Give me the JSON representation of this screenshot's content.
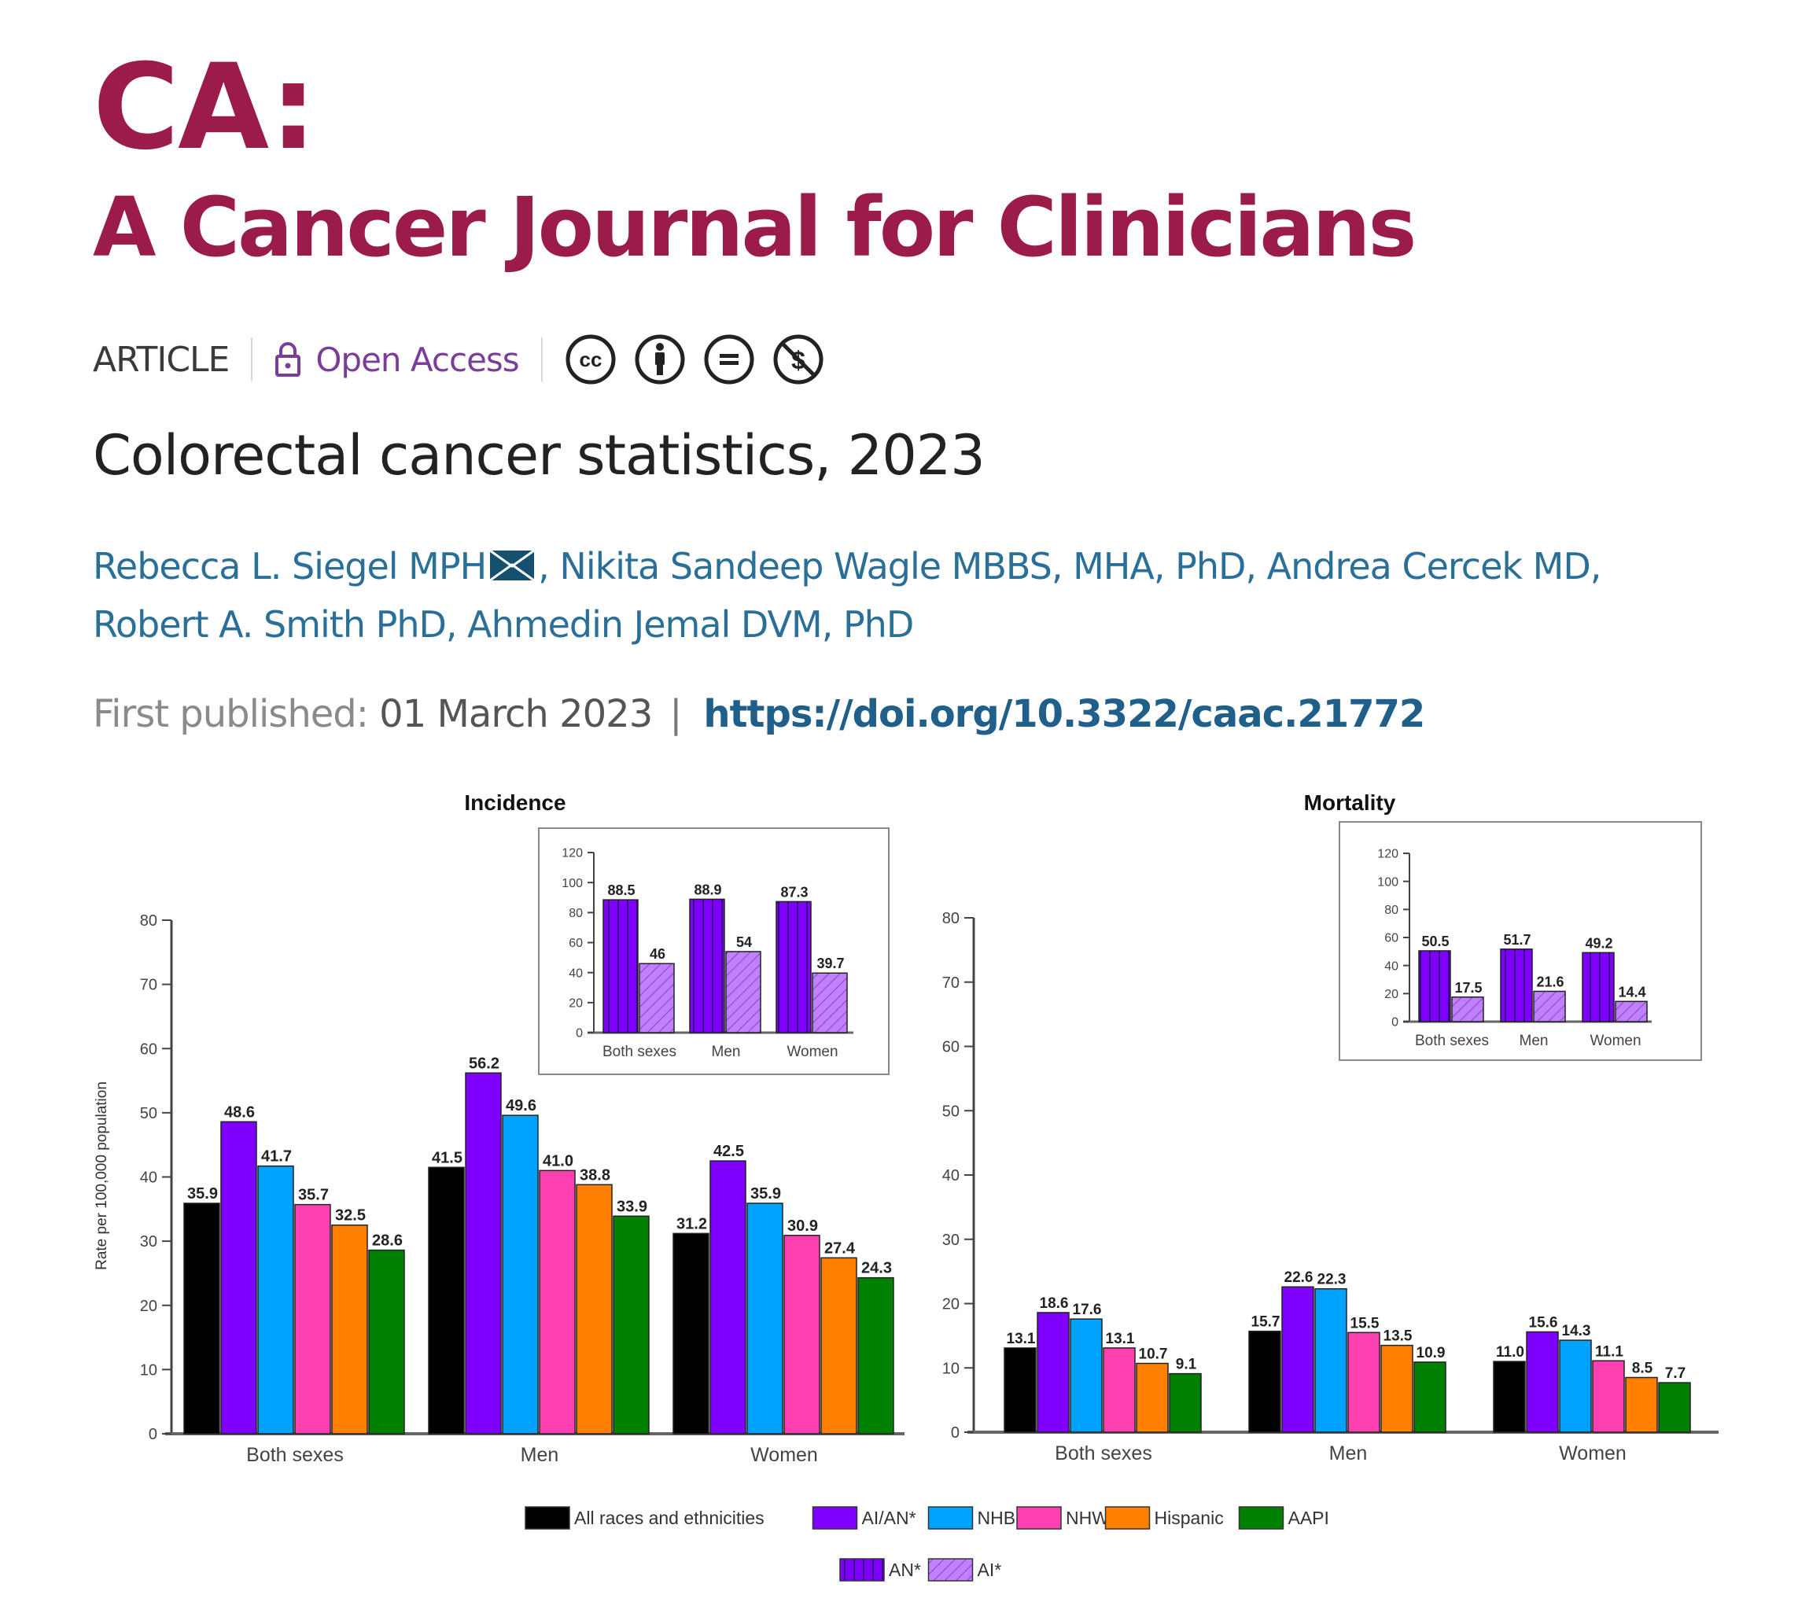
{
  "journal": {
    "name_short": "CA:",
    "name_full": "A Cancer Journal for Clinicians",
    "brand_color": "#9b1b4a"
  },
  "meta": {
    "article_type": "ARTICLE",
    "access_label": "Open Access",
    "access_icon": "lock-icon",
    "license_icons": [
      "cc-icon",
      "attribution-icon",
      "no-derivatives-icon",
      "non-commercial-icon"
    ]
  },
  "article": {
    "title": "Colorectal cancer statistics, 2023",
    "authors_line1_a": "Rebecca L. Siegel MPH",
    "authors_line1_b": ", Nikita Sandeep Wagle MBBS, MHA, PhD, Andrea Cercek MD,",
    "authors_line2": "Robert A. Smith PhD, Ahmedin Jemal DVM, PhD",
    "published_label": "First published:",
    "published_date": "01 March 2023",
    "doi": "https://doi.org/10.3322/caac.21772"
  },
  "chart_data": [
    {
      "type": "bar",
      "title": "Incidence",
      "ylabel": "Rate per 100,000 population",
      "xlabel": "",
      "ylim": [
        0,
        80
      ],
      "yticks": [
        0,
        10,
        20,
        30,
        40,
        50,
        60,
        70,
        80
      ],
      "categories": [
        "Both sexes",
        "Men",
        "Women"
      ],
      "series": [
        {
          "name": "All races and ethnicities",
          "color": "#000000",
          "values": [
            35.9,
            41.5,
            31.2
          ],
          "labels": [
            "35.9",
            "41.5",
            "31.2"
          ]
        },
        {
          "name": "AI/AN*",
          "color": "#8000ff",
          "values": [
            48.6,
            56.2,
            42.5
          ],
          "labels": [
            "48.6",
            "56.2",
            "42.5"
          ]
        },
        {
          "name": "NHB",
          "color": "#00a2ff",
          "values": [
            41.7,
            49.6,
            35.9
          ],
          "labels": [
            "41.7",
            "49.6",
            "35.9"
          ]
        },
        {
          "name": "NHW",
          "color": "#ff40b0",
          "values": [
            35.7,
            41.0,
            30.9
          ],
          "labels": [
            "35.7",
            "41.0",
            "30.9"
          ]
        },
        {
          "name": "Hispanic",
          "color": "#ff8000",
          "values": [
            32.5,
            38.8,
            27.4
          ],
          "labels": [
            "32.5",
            "38.8",
            "27.4"
          ]
        },
        {
          "name": "AAPI",
          "color": "#008000",
          "values": [
            28.6,
            33.9,
            24.3
          ],
          "labels": [
            "28.6",
            "33.9",
            "24.3"
          ]
        }
      ],
      "inset": {
        "type": "bar",
        "ylim": [
          0,
          120
        ],
        "yticks": [
          0,
          20,
          40,
          60,
          80,
          100,
          120
        ],
        "categories": [
          "Both sexes",
          "Men",
          "Women"
        ],
        "series": [
          {
            "name": "AN*",
            "color": "#8000ff",
            "pattern": "vertical-stripes",
            "values": [
              88.5,
              88.9,
              87.3
            ],
            "labels": [
              "88.5",
              "88.9",
              "87.3"
            ]
          },
          {
            "name": "AI*",
            "color": "#c080ff",
            "pattern": "diagonal-hatch",
            "values": [
              46,
              54,
              39.7
            ],
            "labels": [
              "46",
              "54",
              "39.7"
            ]
          }
        ]
      }
    },
    {
      "type": "bar",
      "title": "Mortality",
      "ylabel": "",
      "xlabel": "",
      "ylim": [
        0,
        80
      ],
      "yticks": [
        0,
        10,
        20,
        30,
        40,
        50,
        60,
        70,
        80
      ],
      "categories": [
        "Both sexes",
        "Men",
        "Women"
      ],
      "series": [
        {
          "name": "All races and ethnicities",
          "color": "#000000",
          "values": [
            13.1,
            15.7,
            11.0
          ],
          "labels": [
            "13.1",
            "15.7",
            "11.0"
          ]
        },
        {
          "name": "AI/AN*",
          "color": "#8000ff",
          "values": [
            18.6,
            22.6,
            15.6
          ],
          "labels": [
            "18.6",
            "22.6",
            "15.6"
          ]
        },
        {
          "name": "NHB",
          "color": "#00a2ff",
          "values": [
            17.6,
            22.3,
            14.3
          ],
          "labels": [
            "17.6",
            "22.3",
            "14.3"
          ]
        },
        {
          "name": "NHW",
          "color": "#ff40b0",
          "values": [
            13.1,
            15.5,
            11.1
          ],
          "labels": [
            "13.1",
            "15.5",
            "11.1"
          ]
        },
        {
          "name": "Hispanic",
          "color": "#ff8000",
          "values": [
            10.7,
            13.5,
            8.5
          ],
          "labels": [
            "10.7",
            "13.5",
            "8.5"
          ]
        },
        {
          "name": "AAPI",
          "color": "#008000",
          "values": [
            9.1,
            10.9,
            7.7
          ],
          "labels": [
            "9.1",
            "10.9",
            "7.7"
          ]
        }
      ],
      "inset": {
        "type": "bar",
        "ylim": [
          0,
          120
        ],
        "yticks": [
          0,
          20,
          40,
          60,
          80,
          100,
          120
        ],
        "categories": [
          "Both sexes",
          "Men",
          "Women"
        ],
        "series": [
          {
            "name": "AN*",
            "color": "#8000ff",
            "pattern": "vertical-stripes",
            "values": [
              50.5,
              51.7,
              49.2
            ],
            "labels": [
              "50.5",
              "51.7",
              "49.2"
            ]
          },
          {
            "name": "AI*",
            "color": "#c080ff",
            "pattern": "diagonal-hatch",
            "values": [
              17.5,
              21.6,
              14.4
            ],
            "labels": [
              "17.5",
              "21.6",
              "14.4"
            ]
          }
        ]
      }
    }
  ],
  "legend": {
    "position": "bottom",
    "row1": [
      {
        "label": "All races and ethnicities",
        "color": "#000000"
      },
      {
        "label": "AI/AN*",
        "color": "#8000ff"
      },
      {
        "label": "NHB",
        "color": "#00a2ff"
      },
      {
        "label": "NHW",
        "color": "#ff40b0"
      },
      {
        "label": "Hispanic",
        "color": "#ff8000"
      },
      {
        "label": "AAPI",
        "color": "#008000"
      }
    ],
    "row2": [
      {
        "label": "AN*",
        "color": "#8000ff",
        "pattern": "vertical-stripes"
      },
      {
        "label": "AI*",
        "color": "#c080ff",
        "pattern": "diagonal-hatch"
      }
    ]
  }
}
